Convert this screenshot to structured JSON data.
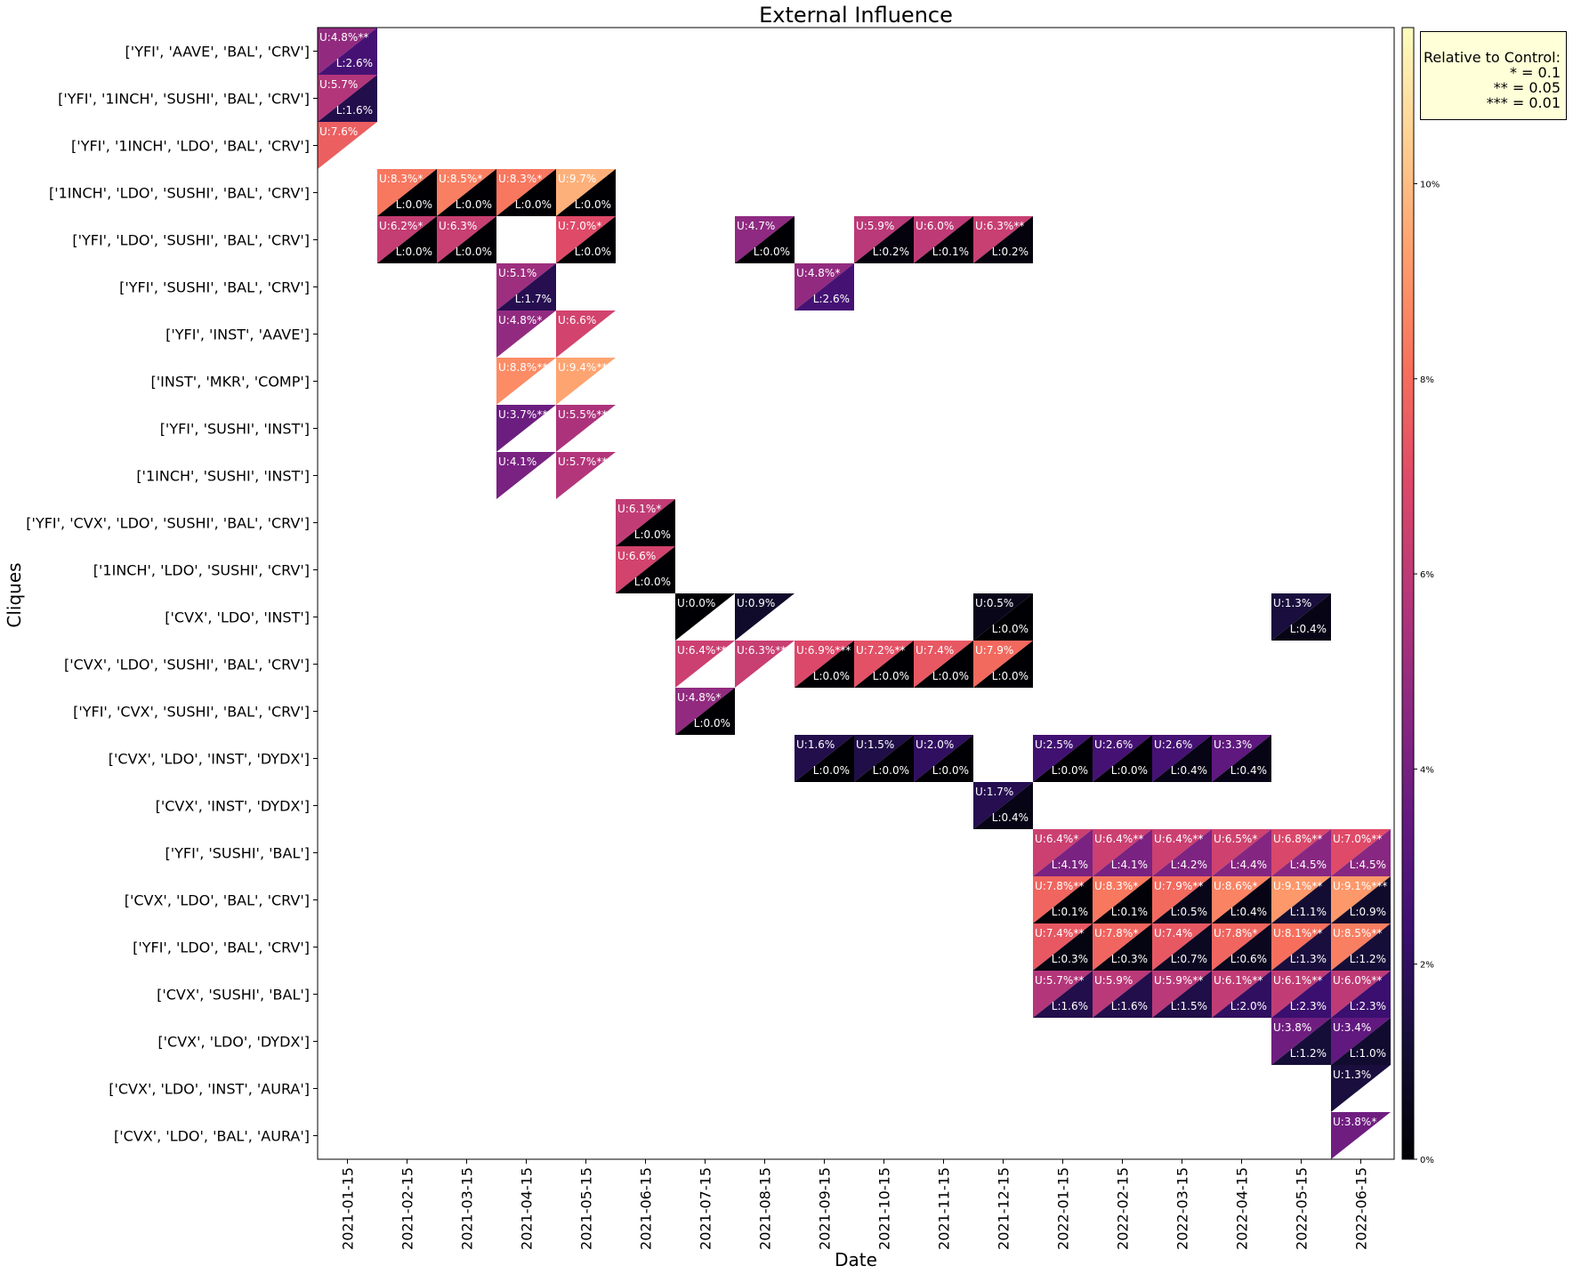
{
  "chart_data": {
    "type": "heatmap",
    "title": "External Influence",
    "xlabel": "Date",
    "ylabel": "Cliques",
    "dates": [
      "2021-01-15",
      "2021-02-15",
      "2021-03-15",
      "2021-04-15",
      "2021-05-15",
      "2021-06-15",
      "2021-07-15",
      "2021-08-15",
      "2021-09-15",
      "2021-10-15",
      "2021-11-15",
      "2021-12-15",
      "2022-01-15",
      "2022-02-15",
      "2022-03-15",
      "2022-04-15",
      "2022-05-15",
      "2022-06-15"
    ],
    "cliques": [
      "['YFI', 'AAVE', 'BAL', 'CRV']",
      "['YFI', '1INCH', 'SUSHI', 'BAL', 'CRV']",
      "['YFI', '1INCH', 'LDO', 'BAL', 'CRV']",
      "['1INCH', 'LDO', 'SUSHI', 'BAL', 'CRV']",
      "['YFI', 'LDO', 'SUSHI', 'BAL', 'CRV']",
      "['YFI', 'SUSHI', 'BAL', 'CRV']",
      "['YFI', 'INST', 'AAVE']",
      "['INST', 'MKR', 'COMP']",
      "['YFI', 'SUSHI', 'INST']",
      "['1INCH', 'SUSHI', 'INST']",
      "['YFI', 'CVX', 'LDO', 'SUSHI', 'BAL', 'CRV']",
      "['1INCH', 'LDO', 'SUSHI', 'CRV']",
      "['CVX', 'LDO', 'INST']",
      "['CVX', 'LDO', 'SUSHI', 'BAL', 'CRV']",
      "['YFI', 'CVX', 'SUSHI', 'BAL', 'CRV']",
      "['CVX', 'LDO', 'INST', 'DYDX']",
      "['CVX', 'INST', 'DYDX']",
      "['YFI', 'SUSHI', 'BAL']",
      "['CVX', 'LDO', 'BAL', 'CRV']",
      "['YFI', 'LDO', 'BAL', 'CRV']",
      "['CVX', 'SUSHI', 'BAL']",
      "['CVX', 'LDO', 'DYDX']",
      "['CVX', 'LDO', 'INST', 'AURA']",
      "['CVX', 'LDO', 'BAL', 'AURA']"
    ],
    "cells": [
      {
        "row": 0,
        "col": 0,
        "upper": 4.8,
        "upper_sig": "**",
        "lower": 2.6
      },
      {
        "row": 1,
        "col": 0,
        "upper": 5.7,
        "upper_sig": "",
        "lower": 1.6
      },
      {
        "row": 2,
        "col": 0,
        "upper": 7.6,
        "upper_sig": "",
        "lower": null
      },
      {
        "row": 3,
        "col": 1,
        "upper": 8.3,
        "upper_sig": "*",
        "lower": 0.0
      },
      {
        "row": 3,
        "col": 2,
        "upper": 8.5,
        "upper_sig": "*",
        "lower": 0.0
      },
      {
        "row": 3,
        "col": 3,
        "upper": 8.3,
        "upper_sig": "*",
        "lower": 0.0
      },
      {
        "row": 3,
        "col": 4,
        "upper": 9.7,
        "upper_sig": "",
        "lower": 0.0
      },
      {
        "row": 4,
        "col": 1,
        "upper": 6.2,
        "upper_sig": "*",
        "lower": 0.0
      },
      {
        "row": 4,
        "col": 2,
        "upper": 6.3,
        "upper_sig": "",
        "lower": 0.0
      },
      {
        "row": 4,
        "col": 4,
        "upper": 7.0,
        "upper_sig": "*",
        "lower": 0.0
      },
      {
        "row": 4,
        "col": 7,
        "upper": 4.7,
        "upper_sig": "",
        "lower": 0.0
      },
      {
        "row": 4,
        "col": 9,
        "upper": 5.9,
        "upper_sig": "",
        "lower": 0.2
      },
      {
        "row": 4,
        "col": 10,
        "upper": 6.0,
        "upper_sig": "",
        "lower": 0.1
      },
      {
        "row": 4,
        "col": 11,
        "upper": 6.3,
        "upper_sig": "**",
        "lower": 0.2
      },
      {
        "row": 5,
        "col": 3,
        "upper": 5.1,
        "upper_sig": "",
        "lower": 1.7
      },
      {
        "row": 5,
        "col": 8,
        "upper": 4.8,
        "upper_sig": "*",
        "lower": 2.6
      },
      {
        "row": 6,
        "col": 3,
        "upper": 4.8,
        "upper_sig": "*",
        "lower": null
      },
      {
        "row": 6,
        "col": 4,
        "upper": 6.6,
        "upper_sig": "",
        "lower": null
      },
      {
        "row": 7,
        "col": 3,
        "upper": 8.8,
        "upper_sig": "**",
        "lower": null
      },
      {
        "row": 7,
        "col": 4,
        "upper": 9.4,
        "upper_sig": "**",
        "lower": null
      },
      {
        "row": 8,
        "col": 3,
        "upper": 3.7,
        "upper_sig": "**",
        "lower": null
      },
      {
        "row": 8,
        "col": 4,
        "upper": 5.5,
        "upper_sig": "**",
        "lower": null
      },
      {
        "row": 9,
        "col": 3,
        "upper": 4.1,
        "upper_sig": "",
        "lower": null
      },
      {
        "row": 9,
        "col": 4,
        "upper": 5.7,
        "upper_sig": "**",
        "lower": null
      },
      {
        "row": 10,
        "col": 5,
        "upper": 6.1,
        "upper_sig": "*",
        "lower": 0.0
      },
      {
        "row": 11,
        "col": 5,
        "upper": 6.6,
        "upper_sig": "",
        "lower": 0.0
      },
      {
        "row": 12,
        "col": 6,
        "upper": 0.0,
        "upper_sig": "",
        "lower": null
      },
      {
        "row": 12,
        "col": 7,
        "upper": 0.9,
        "upper_sig": "",
        "lower": null
      },
      {
        "row": 12,
        "col": 11,
        "upper": 0.5,
        "upper_sig": "",
        "lower": 0.0
      },
      {
        "row": 12,
        "col": 16,
        "upper": 1.3,
        "upper_sig": "",
        "lower": 0.4
      },
      {
        "row": 13,
        "col": 6,
        "upper": 6.4,
        "upper_sig": "**",
        "lower": null
      },
      {
        "row": 13,
        "col": 7,
        "upper": 6.3,
        "upper_sig": "**",
        "lower": null
      },
      {
        "row": 13,
        "col": 8,
        "upper": 6.9,
        "upper_sig": "***",
        "lower": 0.0
      },
      {
        "row": 13,
        "col": 9,
        "upper": 7.2,
        "upper_sig": "**",
        "lower": 0.0
      },
      {
        "row": 13,
        "col": 10,
        "upper": 7.4,
        "upper_sig": "",
        "lower": 0.0
      },
      {
        "row": 13,
        "col": 11,
        "upper": 7.9,
        "upper_sig": "",
        "lower": 0.0
      },
      {
        "row": 14,
        "col": 6,
        "upper": 4.8,
        "upper_sig": "*",
        "lower": 0.0
      },
      {
        "row": 15,
        "col": 8,
        "upper": 1.6,
        "upper_sig": "",
        "lower": 0.0
      },
      {
        "row": 15,
        "col": 9,
        "upper": 1.5,
        "upper_sig": "",
        "lower": 0.0
      },
      {
        "row": 15,
        "col": 10,
        "upper": 2.0,
        "upper_sig": "",
        "lower": 0.0
      },
      {
        "row": 15,
        "col": 12,
        "upper": 2.5,
        "upper_sig": "",
        "lower": 0.0
      },
      {
        "row": 15,
        "col": 13,
        "upper": 2.6,
        "upper_sig": "",
        "lower": 0.0
      },
      {
        "row": 15,
        "col": 14,
        "upper": 2.6,
        "upper_sig": "",
        "lower": 0.4
      },
      {
        "row": 15,
        "col": 15,
        "upper": 3.3,
        "upper_sig": "",
        "lower": 0.4
      },
      {
        "row": 16,
        "col": 11,
        "upper": 1.7,
        "upper_sig": "",
        "lower": 0.4
      },
      {
        "row": 17,
        "col": 12,
        "upper": 6.4,
        "upper_sig": "*",
        "lower": 4.1
      },
      {
        "row": 17,
        "col": 13,
        "upper": 6.4,
        "upper_sig": "**",
        "lower": 4.1
      },
      {
        "row": 17,
        "col": 14,
        "upper": 6.4,
        "upper_sig": "**",
        "lower": 4.2
      },
      {
        "row": 17,
        "col": 15,
        "upper": 6.5,
        "upper_sig": "*",
        "lower": 4.4
      },
      {
        "row": 17,
        "col": 16,
        "upper": 6.8,
        "upper_sig": "**",
        "lower": 4.5
      },
      {
        "row": 17,
        "col": 17,
        "upper": 7.0,
        "upper_sig": "**",
        "lower": 4.5
      },
      {
        "row": 18,
        "col": 12,
        "upper": 7.8,
        "upper_sig": "**",
        "lower": 0.1
      },
      {
        "row": 18,
        "col": 13,
        "upper": 8.3,
        "upper_sig": "*",
        "lower": 0.1
      },
      {
        "row": 18,
        "col": 14,
        "upper": 7.9,
        "upper_sig": "**",
        "lower": 0.5
      },
      {
        "row": 18,
        "col": 15,
        "upper": 8.6,
        "upper_sig": "*",
        "lower": 0.4
      },
      {
        "row": 18,
        "col": 16,
        "upper": 9.1,
        "upper_sig": "**",
        "lower": 1.1
      },
      {
        "row": 18,
        "col": 17,
        "upper": 9.1,
        "upper_sig": "***",
        "lower": 0.9
      },
      {
        "row": 19,
        "col": 12,
        "upper": 7.4,
        "upper_sig": "**",
        "lower": 0.3
      },
      {
        "row": 19,
        "col": 13,
        "upper": 7.8,
        "upper_sig": "*",
        "lower": 0.3
      },
      {
        "row": 19,
        "col": 14,
        "upper": 7.4,
        "upper_sig": "",
        "lower": 0.7
      },
      {
        "row": 19,
        "col": 15,
        "upper": 7.8,
        "upper_sig": "*",
        "lower": 0.6
      },
      {
        "row": 19,
        "col": 16,
        "upper": 8.1,
        "upper_sig": "**",
        "lower": 1.3
      },
      {
        "row": 19,
        "col": 17,
        "upper": 8.5,
        "upper_sig": "**",
        "lower": 1.2
      },
      {
        "row": 20,
        "col": 12,
        "upper": 5.7,
        "upper_sig": "**",
        "lower": 1.6
      },
      {
        "row": 20,
        "col": 13,
        "upper": 5.9,
        "upper_sig": "",
        "lower": 1.6
      },
      {
        "row": 20,
        "col": 14,
        "upper": 5.9,
        "upper_sig": "**",
        "lower": 1.5
      },
      {
        "row": 20,
        "col": 15,
        "upper": 6.1,
        "upper_sig": "**",
        "lower": 2.0
      },
      {
        "row": 20,
        "col": 16,
        "upper": 6.1,
        "upper_sig": "**",
        "lower": 2.3
      },
      {
        "row": 20,
        "col": 17,
        "upper": 6.0,
        "upper_sig": "**",
        "lower": 2.3
      },
      {
        "row": 21,
        "col": 16,
        "upper": 3.8,
        "upper_sig": "",
        "lower": 1.2
      },
      {
        "row": 21,
        "col": 17,
        "upper": 3.4,
        "upper_sig": "",
        "lower": 1.0
      },
      {
        "row": 22,
        "col": 17,
        "upper": 1.3,
        "upper_sig": "",
        "lower": null
      },
      {
        "row": 23,
        "col": 17,
        "upper": 3.8,
        "upper_sig": "*",
        "lower": null
      }
    ],
    "colorbar": {
      "colormap": "magma",
      "min": 0,
      "max": 11.6,
      "ticks": [
        "0%",
        "2%",
        "4%",
        "6%",
        "8%",
        "10%"
      ],
      "tick_values": [
        0,
        2,
        4,
        6,
        8,
        10
      ]
    },
    "legend": {
      "position": "top-right",
      "lines": [
        "Relative to Control:",
        "* = 0.1",
        "** = 0.05",
        "*** = 0.01"
      ]
    },
    "grid": false
  }
}
